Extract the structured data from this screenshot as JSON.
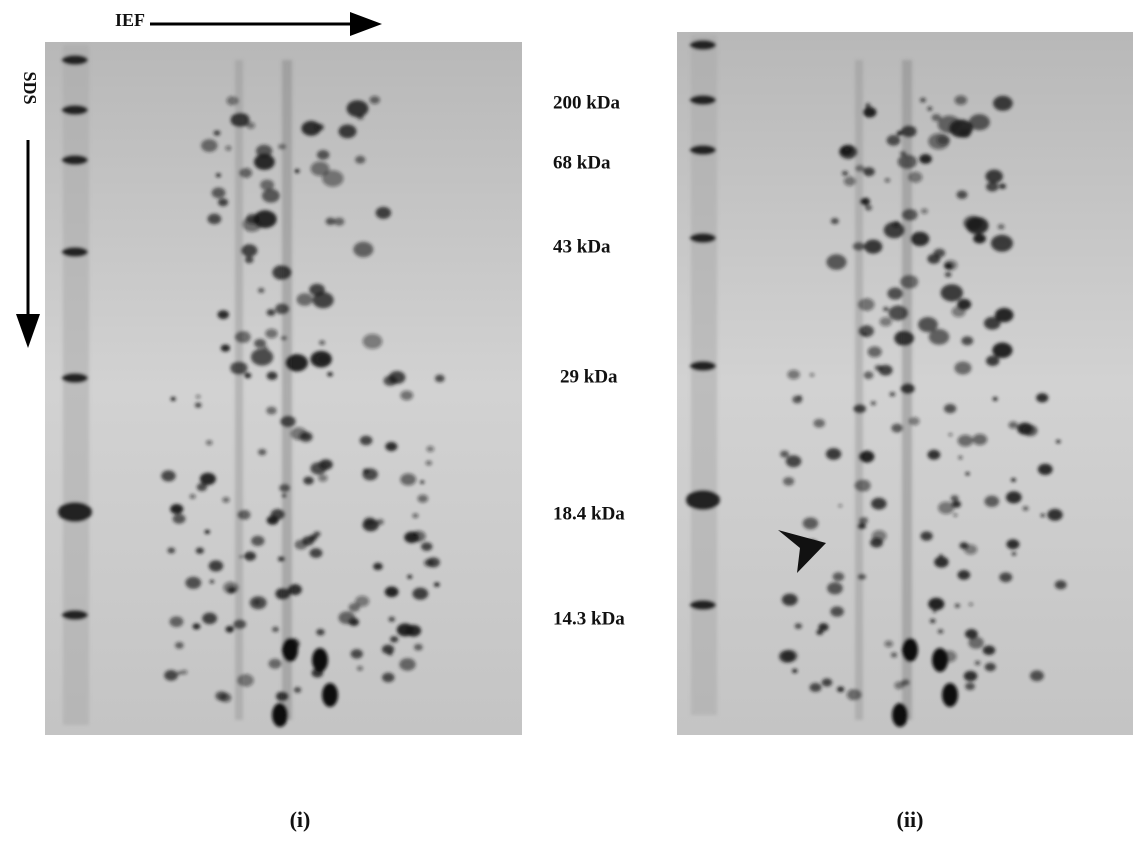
{
  "figure": {
    "axis_labels": {
      "horizontal": "IEF",
      "vertical": "SDS"
    },
    "markers": [
      "200 kDa",
      "68 kDa",
      "43 kDa",
      "29 kDa",
      "18.4 kDa",
      "14.3 kDa"
    ],
    "panels": [
      "(i)",
      "(ii)"
    ]
  }
}
